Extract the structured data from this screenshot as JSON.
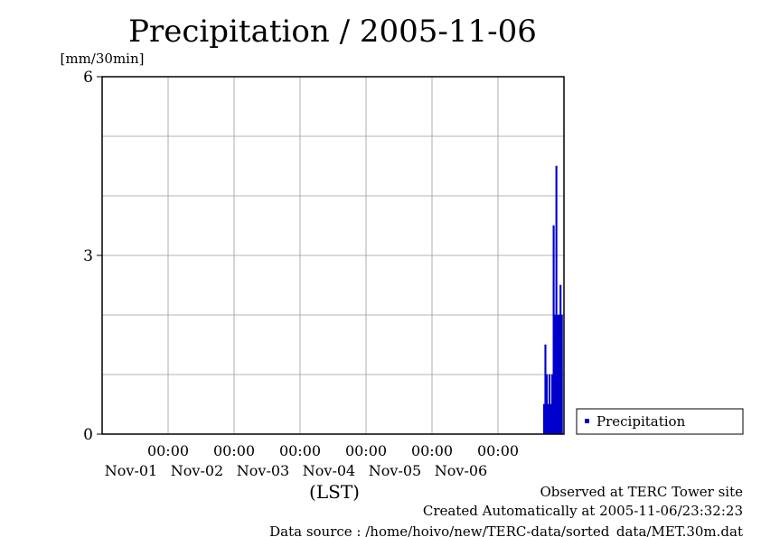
{
  "colors": {
    "background": "#ffffff",
    "axis": "#000000",
    "grid": "#9a9a9a",
    "series": "#0000cc"
  },
  "chart_data": {
    "type": "bar",
    "title": "Precipitation / 2005-11-06",
    "ylabel": "[mm/30min]",
    "xlabel": "(LST)",
    "ylim": [
      0,
      6
    ],
    "y_ticks": [
      "0",
      "3",
      "6"
    ],
    "x_ticks": [
      {
        "time": "00:00",
        "date": "Nov-01"
      },
      {
        "time": "00:00",
        "date": "Nov-02"
      },
      {
        "time": "00:00",
        "date": "Nov-03"
      },
      {
        "time": "00:00",
        "date": "Nov-04"
      },
      {
        "time": "00:00",
        "date": "Nov-05"
      },
      {
        "time": "00:00",
        "date": "Nov-06"
      }
    ],
    "grid": true,
    "legend_position": "right",
    "series": [
      {
        "name": "Precipitation",
        "color": "#0000cc",
        "points": [
          {
            "x": "2005-11-06 16:30",
            "y": 0.5
          },
          {
            "x": "2005-11-06 17:00",
            "y": 1.5
          },
          {
            "x": "2005-11-06 17:30",
            "y": 1.0
          },
          {
            "x": "2005-11-06 18:00",
            "y": 0.5
          },
          {
            "x": "2005-11-06 18:30",
            "y": 1.0
          },
          {
            "x": "2005-11-06 19:00",
            "y": 0.5
          },
          {
            "x": "2005-11-06 19:30",
            "y": 1.0
          },
          {
            "x": "2005-11-06 20:00",
            "y": 3.5
          },
          {
            "x": "2005-11-06 20:30",
            "y": 2.0
          },
          {
            "x": "2005-11-06 21:00",
            "y": 4.5
          },
          {
            "x": "2005-11-06 21:30",
            "y": 2.0
          },
          {
            "x": "2005-11-06 22:00",
            "y": 2.0
          },
          {
            "x": "2005-11-06 22:30",
            "y": 2.5
          },
          {
            "x": "2005-11-06 23:00",
            "y": 2.0
          }
        ]
      }
    ]
  },
  "footer": {
    "line1": "Observed at TERC Tower site",
    "line2": "Created Automatically at 2005-11-06/23:32:23",
    "line3": "Data source : /home/hoivo/new/TERC-data/sorted_data/MET.30m.dat"
  }
}
